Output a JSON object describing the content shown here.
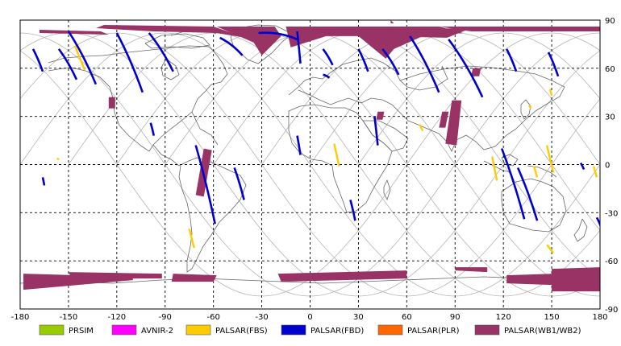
{
  "map": {
    "projection": "equirectangular",
    "x_range": [
      -180,
      180
    ],
    "y_range": [
      -90,
      90
    ],
    "grid_style": "dashed",
    "x_ticks": [
      -180,
      -150,
      -120,
      -90,
      -60,
      -30,
      0,
      30,
      60,
      90,
      120,
      150,
      180
    ],
    "y_ticks": [
      90,
      60,
      30,
      0,
      -30,
      -60,
      -90
    ],
    "x_tick_labels": [
      "-180",
      "-150",
      "-120",
      "-90",
      "-60",
      "-30",
      "0",
      "30",
      "60",
      "90",
      "120",
      "150",
      "180"
    ],
    "y_tick_labels": [
      "90",
      "60",
      "30",
      "0",
      "-30",
      "-60",
      "-90"
    ]
  },
  "legend": [
    {
      "label": "PRSIM",
      "color": "#99cc00"
    },
    {
      "label": "AVNIR-2",
      "color": "#ff00ff"
    },
    {
      "label": "PALSAR(FBS)",
      "color": "#ffcc00"
    },
    {
      "label": "PALSAR(FBD)",
      "color": "#0000cc"
    },
    {
      "label": "PALSAR(PLR)",
      "color": "#ff6600"
    },
    {
      "label": "PALSAR(WB1/WB2)",
      "color": "#993366"
    }
  ],
  "colors": {
    "orbit": "#b4b4b4",
    "coast": "#666666",
    "grid": "#000000"
  },
  "observations": {
    "fbd": [
      {
        "lon": [
          -172,
          -166
        ],
        "lat": [
          72,
          58
        ]
      },
      {
        "lon": [
          -156,
          -145
        ],
        "lat": [
          72,
          53
        ]
      },
      {
        "lon": [
          -150,
          -133
        ],
        "lat": [
          83,
          50
        ]
      },
      {
        "lon": [
          -120,
          -104
        ],
        "lat": [
          82,
          45
        ]
      },
      {
        "lon": [
          -100,
          -85
        ],
        "lat": [
          82,
          58
        ]
      },
      {
        "lon": [
          -56,
          -42
        ],
        "lat": [
          79,
          68
        ]
      },
      {
        "lon": [
          -32,
          -8
        ],
        "lat": [
          82,
          78
        ]
      },
      {
        "lon": [
          -8,
          -6
        ],
        "lat": [
          83,
          63
        ]
      },
      {
        "lon": [
          8,
          14
        ],
        "lat": [
          72,
          62
        ]
      },
      {
        "lon": [
          30,
          36
        ],
        "lat": [
          72,
          58
        ]
      },
      {
        "lon": [
          45,
          55
        ],
        "lat": [
          72,
          56
        ]
      },
      {
        "lon": [
          62,
          80
        ],
        "lat": [
          80,
          45
        ]
      },
      {
        "lon": [
          86,
          107
        ],
        "lat": [
          78,
          42
        ]
      },
      {
        "lon": [
          122,
          128
        ],
        "lat": [
          72,
          58
        ]
      },
      {
        "lon": [
          148,
          154
        ],
        "lat": [
          70,
          55
        ]
      },
      {
        "lon": [
          -71,
          -59
        ],
        "lat": [
          12,
          -37
        ]
      },
      {
        "lon": [
          -47,
          -41
        ],
        "lat": [
          -2,
          -22
        ]
      },
      {
        "lon": [
          -99,
          -97
        ],
        "lat": [
          26,
          18
        ]
      },
      {
        "lon": [
          -8,
          -6
        ],
        "lat": [
          18,
          6
        ]
      },
      {
        "lon": [
          25,
          28
        ],
        "lat": [
          -22,
          -35
        ]
      },
      {
        "lon": [
          40,
          42
        ],
        "lat": [
          30,
          12
        ]
      },
      {
        "lon": [
          119,
          133
        ],
        "lat": [
          10,
          -34
        ]
      },
      {
        "lon": [
          129,
          141
        ],
        "lat": [
          -2,
          -35
        ]
      },
      {
        "lon": [
          -166,
          -165
        ],
        "lat": [
          -8,
          -13
        ]
      },
      {
        "lon": [
          168,
          170
        ],
        "lat": [
          1,
          -3
        ]
      },
      {
        "lon": [
          178,
          181
        ],
        "lat": [
          -33,
          -40
        ]
      },
      {
        "lon": [
          8,
          12
        ],
        "lat": [
          56,
          54
        ]
      }
    ],
    "fbs": [
      {
        "lon": [
          -146,
          -140
        ],
        "lat": [
          74,
          59
        ]
      },
      {
        "lon": [
          -157,
          -156
        ],
        "lat": [
          4,
          3
        ]
      },
      {
        "lon": [
          15,
          18
        ],
        "lat": [
          13,
          -1
        ]
      },
      {
        "lon": [
          68,
          70
        ],
        "lat": [
          25,
          21
        ]
      },
      {
        "lon": [
          113,
          116
        ],
        "lat": [
          5,
          -10
        ]
      },
      {
        "lon": [
          139,
          141
        ],
        "lat": [
          -1,
          -8
        ]
      },
      {
        "lon": [
          147,
          151
        ],
        "lat": [
          12,
          -5
        ]
      },
      {
        "lon": [
          147,
          151
        ],
        "lat": [
          -50,
          -55
        ]
      },
      {
        "lon": [
          -75,
          -72
        ],
        "lat": [
          -40,
          -52
        ]
      },
      {
        "lon": [
          136,
          137
        ],
        "lat": [
          37,
          35
        ]
      },
      {
        "lon": [
          149,
          150
        ],
        "lat": [
          47,
          43
        ]
      },
      {
        "lon": [
          176,
          178
        ],
        "lat": [
          -1,
          -8
        ]
      }
    ],
    "wb_polys": [
      [
        [
          -168,
          84
        ],
        [
          -130,
          83
        ],
        [
          -125,
          81
        ],
        [
          -168,
          82
        ]
      ],
      [
        [
          -128,
          87
        ],
        [
          -60,
          86
        ],
        [
          -40,
          79
        ],
        [
          -58,
          82
        ],
        [
          -97,
          83
        ],
        [
          -133,
          85
        ]
      ],
      [
        [
          -58,
          86
        ],
        [
          -22,
          86
        ],
        [
          -18,
          80
        ],
        [
          -30,
          68
        ],
        [
          -35,
          76
        ]
      ],
      [
        [
          -15,
          86
        ],
        [
          80,
          86
        ],
        [
          95,
          82
        ],
        [
          70,
          80
        ],
        [
          52,
          72
        ],
        [
          47,
          66
        ],
        [
          30,
          80
        ],
        [
          10,
          80
        ],
        [
          -12,
          73
        ]
      ],
      [
        [
          15,
          84
        ],
        [
          100,
          85
        ],
        [
          85,
          79
        ],
        [
          40,
          80
        ]
      ],
      [
        [
          80,
          86
        ],
        [
          180,
          86
        ],
        [
          180,
          83
        ],
        [
          100,
          83
        ]
      ],
      [
        [
          -66,
          10
        ],
        [
          -61,
          9
        ],
        [
          -66,
          -20
        ],
        [
          -71,
          -19
        ]
      ],
      [
        [
          -125,
          42
        ],
        [
          -121,
          42
        ],
        [
          -121,
          35
        ],
        [
          -125,
          35
        ]
      ],
      [
        [
          42,
          33
        ],
        [
          46,
          33
        ],
        [
          45,
          28
        ],
        [
          41,
          28
        ]
      ],
      [
        [
          82,
          33
        ],
        [
          86,
          33
        ],
        [
          84,
          23
        ],
        [
          80,
          23
        ]
      ],
      [
        [
          88,
          40
        ],
        [
          94,
          40
        ],
        [
          91,
          12
        ],
        [
          84,
          13
        ]
      ],
      [
        [
          50,
          90
        ],
        [
          52,
          88
        ],
        [
          50,
          88
        ]
      ],
      [
        [
          101,
          60
        ],
        [
          106,
          60
        ],
        [
          105,
          55
        ],
        [
          100,
          55
        ]
      ],
      [
        [
          -178,
          -68
        ],
        [
          -110,
          -70
        ],
        [
          -110,
          -72
        ],
        [
          -178,
          -78
        ]
      ],
      [
        [
          -150,
          -67
        ],
        [
          -92,
          -68
        ],
        [
          -92,
          -71
        ],
        [
          -148,
          -71
        ]
      ],
      [
        [
          -85,
          -68
        ],
        [
          -58,
          -69
        ],
        [
          -60,
          -73
        ],
        [
          -86,
          -73
        ]
      ],
      [
        [
          -20,
          -68
        ],
        [
          60,
          -66
        ],
        [
          60,
          -71
        ],
        [
          -18,
          -73
        ]
      ],
      [
        [
          90,
          -64
        ],
        [
          110,
          -64
        ],
        [
          110,
          -67
        ],
        [
          90,
          -66
        ]
      ],
      [
        [
          122,
          -69
        ],
        [
          152,
          -68
        ],
        [
          150,
          -75
        ],
        [
          122,
          -74
        ]
      ],
      [
        [
          150,
          -65
        ],
        [
          180,
          -64
        ],
        [
          180,
          -79
        ],
        [
          150,
          -79
        ]
      ]
    ]
  }
}
